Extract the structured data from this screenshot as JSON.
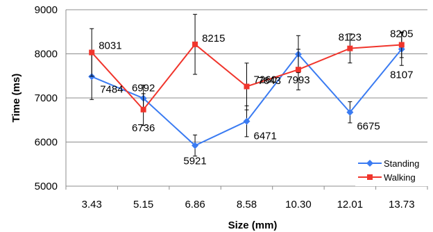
{
  "chart_data": {
    "type": "line",
    "xlabel": "Size (mm)",
    "ylabel": "Time (ms)",
    "categories": [
      "3.43",
      "5.15",
      "6.86",
      "8.58",
      "10.30",
      "12.01",
      "13.73"
    ],
    "ylim": [
      5000,
      9000
    ],
    "yticks": [
      5000,
      6000,
      7000,
      8000,
      9000
    ],
    "grid": true,
    "legend_position": "bottom-right",
    "series": [
      {
        "name": "Standing",
        "color": "#3a7bf2",
        "marker": "diamond",
        "values": [
          7484,
          6992,
          5921,
          6471,
          7993,
          6675,
          8107
        ],
        "error": [
          520,
          300,
          240,
          350,
          420,
          240,
          370
        ],
        "labels": [
          "7484",
          "6992",
          "5921",
          "6471",
          "7993",
          "6675",
          "8107"
        ]
      },
      {
        "name": "Walking",
        "color": "#f0352c",
        "marker": "square",
        "values": [
          8031,
          6736,
          8215,
          7260,
          7643,
          8123,
          8205
        ],
        "error": [
          540,
          360,
          680,
          530,
          460,
          330,
          290
        ],
        "labels": [
          "8031",
          "6736",
          "8215",
          "7260",
          "7643",
          "8123",
          "8205"
        ]
      }
    ]
  }
}
